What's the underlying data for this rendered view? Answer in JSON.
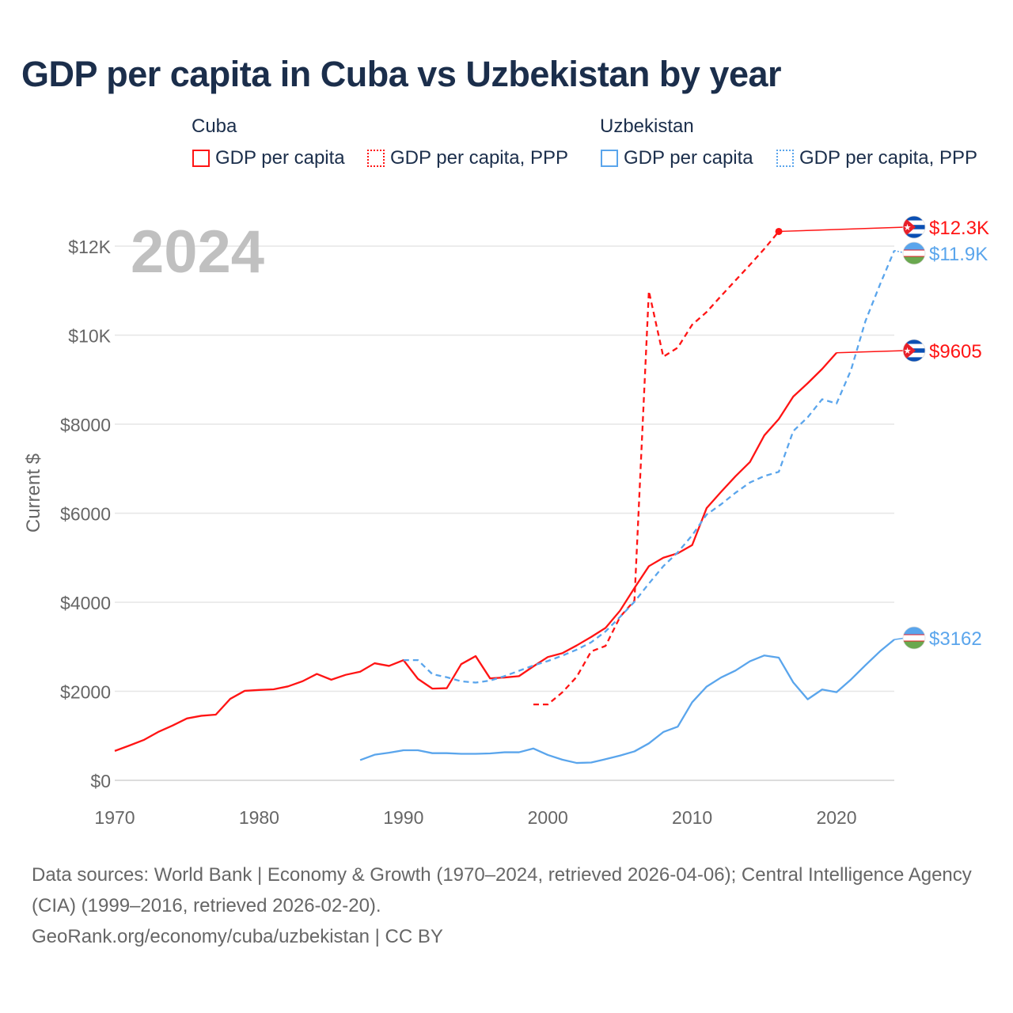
{
  "title": "GDP per capita in Cuba vs Uzbekistan by year",
  "colors": {
    "cuba": "#ff1414",
    "uzbekistan": "#5aa5ec",
    "grid": "#e6e6e6",
    "axis_text": "#666666",
    "year_watermark": "#c0c0c0"
  },
  "legend": {
    "groups": [
      {
        "name": "Cuba",
        "items": [
          "GDP per capita",
          "GDP per capita, PPP"
        ]
      },
      {
        "name": "Uzbekistan",
        "items": [
          "GDP per capita",
          "GDP per capita, PPP"
        ]
      }
    ]
  },
  "chart_data": {
    "type": "line",
    "title": "GDP per capita in Cuba vs Uzbekistan by year",
    "xlabel": "",
    "ylabel": "Current $",
    "xlim": [
      1970,
      2024
    ],
    "ylim": [
      0,
      12700
    ],
    "x_ticks": [
      1970,
      1980,
      1990,
      2000,
      2010,
      2020
    ],
    "x_tick_labels": [
      "1970",
      "1980",
      "1990",
      "2000",
      "2010",
      "2020"
    ],
    "y_ticks": [
      0,
      2000,
      4000,
      6000,
      8000,
      10000,
      12000
    ],
    "y_tick_labels": [
      "$0",
      "$2000",
      "$4000",
      "$6000",
      "$8000",
      "$10K",
      "$12K"
    ],
    "grid": true,
    "year_label": "2024",
    "series": [
      {
        "name": "Cuba GDP per capita",
        "country": "cuba",
        "dashed": false,
        "end_label": "$9605",
        "x": [
          1970,
          1971,
          1972,
          1973,
          1974,
          1975,
          1976,
          1977,
          1978,
          1979,
          1980,
          1981,
          1982,
          1983,
          1984,
          1985,
          1986,
          1987,
          1988,
          1989,
          1990,
          1991,
          1992,
          1993,
          1994,
          1995,
          1996,
          1997,
          1998,
          1999,
          2000,
          2001,
          2002,
          2003,
          2004,
          2005,
          2006,
          2007,
          2008,
          2009,
          2010,
          2011,
          2012,
          2013,
          2014,
          2015,
          2016,
          2017,
          2018,
          2019,
          2020
        ],
        "y": [
          660,
          780,
          905,
          1085,
          1230,
          1390,
          1450,
          1475,
          1830,
          2010,
          2030,
          2045,
          2110,
          2225,
          2390,
          2260,
          2370,
          2440,
          2630,
          2570,
          2700,
          2280,
          2060,
          2070,
          2610,
          2790,
          2290,
          2310,
          2340,
          2560,
          2770,
          2855,
          3030,
          3220,
          3425,
          3810,
          4320,
          4810,
          5000,
          5100,
          5285,
          6115,
          6480,
          6830,
          7150,
          7750,
          8115,
          8620,
          8920,
          9240,
          9605
        ]
      },
      {
        "name": "Cuba GDP per capita, PPP",
        "country": "cuba",
        "dashed": true,
        "end_label": "$12.3K",
        "x": [
          1999,
          2000,
          2001,
          2002,
          2003,
          2004,
          2005,
          2006,
          2007,
          2008,
          2009,
          2010,
          2011,
          2012,
          2013,
          2014,
          2015,
          2016
        ],
        "y": [
          1705,
          1705,
          1975,
          2325,
          2895,
          3020,
          3670,
          4040,
          10990,
          9515,
          9720,
          10235,
          10520,
          10880,
          11230,
          11580,
          11940,
          12330
        ]
      },
      {
        "name": "Uzbekistan GDP per capita",
        "country": "uzbekistan",
        "dashed": false,
        "end_label": "$3162",
        "x": [
          1987,
          1988,
          1989,
          1990,
          1991,
          1992,
          1993,
          1994,
          1995,
          1996,
          1997,
          1998,
          1999,
          2000,
          2001,
          2002,
          2003,
          2004,
          2005,
          2006,
          2007,
          2008,
          2009,
          2010,
          2011,
          2012,
          2013,
          2014,
          2015,
          2016,
          2017,
          2018,
          2019,
          2020,
          2021,
          2022,
          2023,
          2024
        ],
        "y": [
          455,
          575,
          620,
          675,
          675,
          610,
          610,
          595,
          595,
          605,
          630,
          630,
          715,
          570,
          465,
          390,
          400,
          475,
          555,
          650,
          830,
          1085,
          1205,
          1755,
          2105,
          2310,
          2465,
          2675,
          2805,
          2755,
          2200,
          1820,
          2040,
          1980,
          2265,
          2585,
          2895,
          3162
        ]
      },
      {
        "name": "Uzbekistan GDP per capita, PPP",
        "country": "uzbekistan",
        "dashed": true,
        "end_label": "$11.9K",
        "x": [
          1990,
          1991,
          1992,
          1993,
          1994,
          1995,
          1996,
          1997,
          1998,
          1999,
          2000,
          2001,
          2002,
          2003,
          2004,
          2005,
          2006,
          2007,
          2008,
          2009,
          2010,
          2011,
          2012,
          2013,
          2014,
          2015,
          2016,
          2017,
          2018,
          2019,
          2020,
          2021,
          2022,
          2023,
          2024
        ],
        "y": [
          2700,
          2700,
          2385,
          2315,
          2225,
          2195,
          2240,
          2340,
          2460,
          2580,
          2680,
          2800,
          2935,
          3100,
          3345,
          3670,
          4010,
          4420,
          4810,
          5120,
          5505,
          5970,
          6200,
          6460,
          6690,
          6835,
          6930,
          7845,
          8155,
          8560,
          8465,
          9215,
          10315,
          11130,
          11900
        ]
      }
    ]
  },
  "footer": {
    "sources": "Data sources: World Bank | Economy & Growth (1970–2024, retrieved 2026-04-06); Central Intelligence Agency (CIA) (1999–2016, retrieved 2026-02-20).",
    "link": "GeoRank.org/economy/cuba/uzbekistan | CC BY"
  }
}
